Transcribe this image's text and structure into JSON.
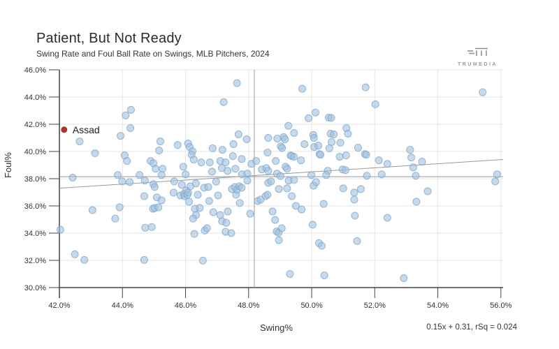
{
  "header": {
    "title": "Patient, But Not Ready",
    "subtitle": "Swing Rate and Foul Ball Rate on Swings, MLB Pitchers, 2024"
  },
  "logo": {
    "brand": "TRUMEDIA",
    "icon": "trumedia-tm-mark",
    "color": "#9a9a9a"
  },
  "chart_data": {
    "type": "scatter",
    "title": "Patient, But Not Ready",
    "subtitle": "Swing Rate and Foul Ball Rate on Swings, MLB Pitchers, 2024",
    "xlabel": "Swing%",
    "ylabel": "Foul%",
    "xlim": [
      42,
      56.07
    ],
    "ylim": [
      30,
      46
    ],
    "x_ticks": [
      42,
      44,
      46,
      48,
      50,
      52,
      54,
      56
    ],
    "y_ticks": [
      30,
      32,
      34,
      36,
      38,
      40,
      42,
      44,
      46
    ],
    "grid": true,
    "colors": {
      "point_fill": "#9fc2e0",
      "point_stroke": "#7fa8cd",
      "highlight": "#b5342a",
      "gridline": "#e6e6e6",
      "axis": "#444444",
      "reference_line": "#999999"
    },
    "reference_lines": {
      "vertical_x": 48.18,
      "horizontal_y": 38.15
    },
    "trend": {
      "slope": 0.15,
      "intercept_pct": 31.0,
      "equation_label": "0.15x + 0.31, rSq = 0.024"
    },
    "highlight": {
      "label": "Assad",
      "x": 42.15,
      "y": 41.6
    },
    "points": [
      [
        42.64,
        40.74
      ],
      [
        43.13,
        39.87
      ],
      [
        43.94,
        41.15
      ],
      [
        44.1,
        42.65
      ],
      [
        44.27,
        43.06
      ],
      [
        44.25,
        41.72
      ],
      [
        44.07,
        39.71
      ],
      [
        44.14,
        39.3
      ],
      [
        44.54,
        38.27
      ],
      [
        44.89,
        39.3
      ],
      [
        44.98,
        39.14
      ],
      [
        45.05,
        38.73
      ],
      [
        45.16,
        40.07
      ],
      [
        45.2,
        40.74
      ],
      [
        45.27,
        38.73
      ],
      [
        45.24,
        38.27
      ],
      [
        45.75,
        40.48
      ],
      [
        45.93,
        38.88
      ],
      [
        46.0,
        38.32
      ],
      [
        46.08,
        40.59
      ],
      [
        46.13,
        40.33
      ],
      [
        46.22,
        40.02
      ],
      [
        46.19,
        39.76
      ],
      [
        46.26,
        39.4
      ],
      [
        46.5,
        39.2
      ],
      [
        43.85,
        38.27
      ],
      [
        42.42,
        38.08
      ],
      [
        47.63,
        45.02
      ],
      [
        49.7,
        44.61
      ],
      [
        47.21,
        43.63
      ],
      [
        50.12,
        42.86
      ],
      [
        49.9,
        42.44
      ],
      [
        50.54,
        42.49
      ],
      [
        50.62,
        42.47
      ],
      [
        49.26,
        41.88
      ],
      [
        51.1,
        41.72
      ],
      [
        51.15,
        41.31
      ],
      [
        49.44,
        41.36
      ],
      [
        47.68,
        41.26
      ],
      [
        50.05,
        41.21
      ],
      [
        50.07,
        41.0
      ],
      [
        48.62,
        41.0
      ],
      [
        48.91,
        40.95
      ],
      [
        49.11,
        41.05
      ],
      [
        49.15,
        40.9
      ],
      [
        47.94,
        40.9
      ],
      [
        50.6,
        41.31
      ],
      [
        50.7,
        41.26
      ],
      [
        49.02,
        40.38
      ],
      [
        49.06,
        40.26
      ],
      [
        47.52,
        40.54
      ],
      [
        46.86,
        40.23
      ],
      [
        50.63,
        40.69
      ],
      [
        50.91,
        40.64
      ],
      [
        49.77,
        40.54
      ],
      [
        50.08,
        40.33
      ],
      [
        50.21,
        40.43
      ],
      [
        47.17,
        40.12
      ],
      [
        47.1,
        39.3
      ],
      [
        47.27,
        39.2
      ],
      [
        47.5,
        39.66
      ],
      [
        47.78,
        39.45
      ],
      [
        48.6,
        39.92
      ],
      [
        49.33,
        39.71
      ],
      [
        49.37,
        39.66
      ],
      [
        49.44,
        39.61
      ],
      [
        49.66,
        39.35
      ],
      [
        50.25,
        39.81
      ],
      [
        50.28,
        39.76
      ],
      [
        50.56,
        40.23
      ],
      [
        50.89,
        39.61
      ],
      [
        51.09,
        39.71
      ],
      [
        48.09,
        39.09
      ],
      [
        48.24,
        39.3
      ],
      [
        48.86,
        39.3
      ],
      [
        48.42,
        38.68
      ],
      [
        48.56,
        38.78
      ],
      [
        48.62,
        38.58
      ],
      [
        49.17,
        38.88
      ],
      [
        49.22,
        38.73
      ],
      [
        46.77,
        39.2
      ],
      [
        46.84,
        38.52
      ],
      [
        47.15,
        38.78
      ],
      [
        47.33,
        38.58
      ],
      [
        47.58,
        38.73
      ],
      [
        47.79,
        38.32
      ],
      [
        47.96,
        38.37
      ],
      [
        48.9,
        38.37
      ],
      [
        49.01,
        38.2
      ],
      [
        50.51,
        38.58
      ],
      [
        50.98,
        38.68
      ],
      [
        51.07,
        38.63
      ],
      [
        49.99,
        38.27
      ],
      [
        50.46,
        38.27
      ],
      [
        51.71,
        44.71
      ],
      [
        55.42,
        44.35
      ],
      [
        52.02,
        43.47
      ],
      [
        51.47,
        40.28
      ],
      [
        51.69,
        39.81
      ],
      [
        51.73,
        39.76
      ],
      [
        52.13,
        39.35
      ],
      [
        52.4,
        39.09
      ],
      [
        53.12,
        40.12
      ],
      [
        53.16,
        39.56
      ],
      [
        53.22,
        38.83
      ],
      [
        53.5,
        39.25
      ],
      [
        51.75,
        38.22
      ],
      [
        52.22,
        38.32
      ],
      [
        53.3,
        38.22
      ],
      [
        55.88,
        38.32
      ],
      [
        43.99,
        37.8
      ],
      [
        44.23,
        37.75
      ],
      [
        44.71,
        37.86
      ],
      [
        44.98,
        37.6
      ],
      [
        45.02,
        37.39
      ],
      [
        45.64,
        37.8
      ],
      [
        45.88,
        37.55
      ],
      [
        46.02,
        37.13
      ],
      [
        46.15,
        37.44
      ],
      [
        46.33,
        37.65
      ],
      [
        46.59,
        37.34
      ],
      [
        44.69,
        36.72
      ],
      [
        45.09,
        36.62
      ],
      [
        45.24,
        36.41
      ],
      [
        45.62,
        36.98
      ],
      [
        45.84,
        36.77
      ],
      [
        45.95,
        36.88
      ],
      [
        45.97,
        36.72
      ],
      [
        46.06,
        36.82
      ],
      [
        46.08,
        36.98
      ],
      [
        46.11,
        36.31
      ],
      [
        46.39,
        36.82
      ],
      [
        43.05,
        35.69
      ],
      [
        43.91,
        35.9
      ],
      [
        43.77,
        35.07
      ],
      [
        44.97,
        35.79
      ],
      [
        45.02,
        35.85
      ],
      [
        45.14,
        35.9
      ],
      [
        46.3,
        35.79
      ],
      [
        46.45,
        35.85
      ],
      [
        46.33,
        35.33
      ],
      [
        46.24,
        35.07
      ],
      [
        42.03,
        34.25
      ],
      [
        44.72,
        34.4
      ],
      [
        44.93,
        34.45
      ],
      [
        46.28,
        33.94
      ],
      [
        46.61,
        34.19
      ],
      [
        42.49,
        32.44
      ],
      [
        42.79,
        32.03
      ],
      [
        44.69,
        32.03
      ],
      [
        46.55,
        31.98
      ],
      [
        46.72,
        37.39
      ],
      [
        46.97,
        37.78
      ],
      [
        47.03,
        36.77
      ],
      [
        47.47,
        37.24
      ],
      [
        47.56,
        37.39
      ],
      [
        47.6,
        36.82
      ],
      [
        47.63,
        37.18
      ],
      [
        47.7,
        37.44
      ],
      [
        47.78,
        37.34
      ],
      [
        47.72,
        36.21
      ],
      [
        47.96,
        37.86
      ],
      [
        46.75,
        36.36
      ],
      [
        46.88,
        35.54
      ],
      [
        47.1,
        35.33
      ],
      [
        47.16,
        34.87
      ],
      [
        47.29,
        34.76
      ],
      [
        47.34,
        35.59
      ],
      [
        47.27,
        34.1
      ],
      [
        47.45,
        34.0
      ],
      [
        48.05,
        35.43
      ],
      [
        48.29,
        36.36
      ],
      [
        48.38,
        36.46
      ],
      [
        48.54,
        36.72
      ],
      [
        48.6,
        36.82
      ],
      [
        48.62,
        37.7
      ],
      [
        48.71,
        37.8
      ],
      [
        48.96,
        37.24
      ],
      [
        49.22,
        37.29
      ],
      [
        49.27,
        37.86
      ],
      [
        49.37,
        36.72
      ],
      [
        49.44,
        37.91
      ],
      [
        49.5,
        36.0
      ],
      [
        49.68,
        35.74
      ],
      [
        48.76,
        35.59
      ],
      [
        48.84,
        34.97
      ],
      [
        48.89,
        34.12
      ],
      [
        48.95,
        34.04
      ],
      [
        49.05,
        34.36
      ],
      [
        48.96,
        33.48
      ],
      [
        49.31,
        31.0
      ],
      [
        50.03,
        34.62
      ],
      [
        50.06,
        37.49
      ],
      [
        50.14,
        37.75
      ],
      [
        50.23,
        33.27
      ],
      [
        50.32,
        33.07
      ],
      [
        50.38,
        36.15
      ],
      [
        50.4,
        30.9
      ],
      [
        51.0,
        37.29
      ],
      [
        46.68,
        34.36
      ],
      [
        51.56,
        37.24
      ],
      [
        51.35,
        36.98
      ],
      [
        51.35,
        36.46
      ],
      [
        53.68,
        37.08
      ],
      [
        53.32,
        36.31
      ],
      [
        52.4,
        35.13
      ],
      [
        51.37,
        35.28
      ],
      [
        51.44,
        33.42
      ],
      [
        52.92,
        30.69
      ],
      [
        55.82,
        37.8
      ]
    ]
  }
}
